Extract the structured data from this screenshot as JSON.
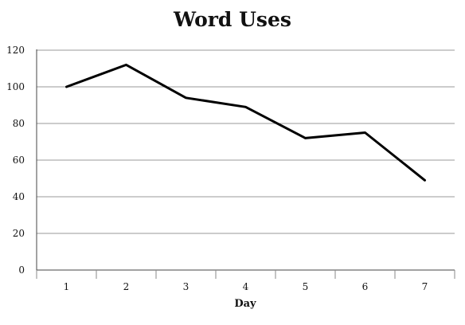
{
  "chart_data": {
    "type": "line",
    "title": "Word Uses",
    "xlabel": "Day",
    "ylabel": "",
    "categories": [
      "1",
      "2",
      "3",
      "4",
      "5",
      "6",
      "7"
    ],
    "series": [
      {
        "values": [
          100,
          112,
          94,
          89,
          72,
          75,
          49
        ]
      }
    ],
    "ylim": [
      0,
      120
    ],
    "yticks": [
      0,
      20,
      40,
      60,
      80,
      100,
      120
    ],
    "grid": true,
    "line_color": "#000000",
    "grid_color": "#9a9a9a"
  }
}
